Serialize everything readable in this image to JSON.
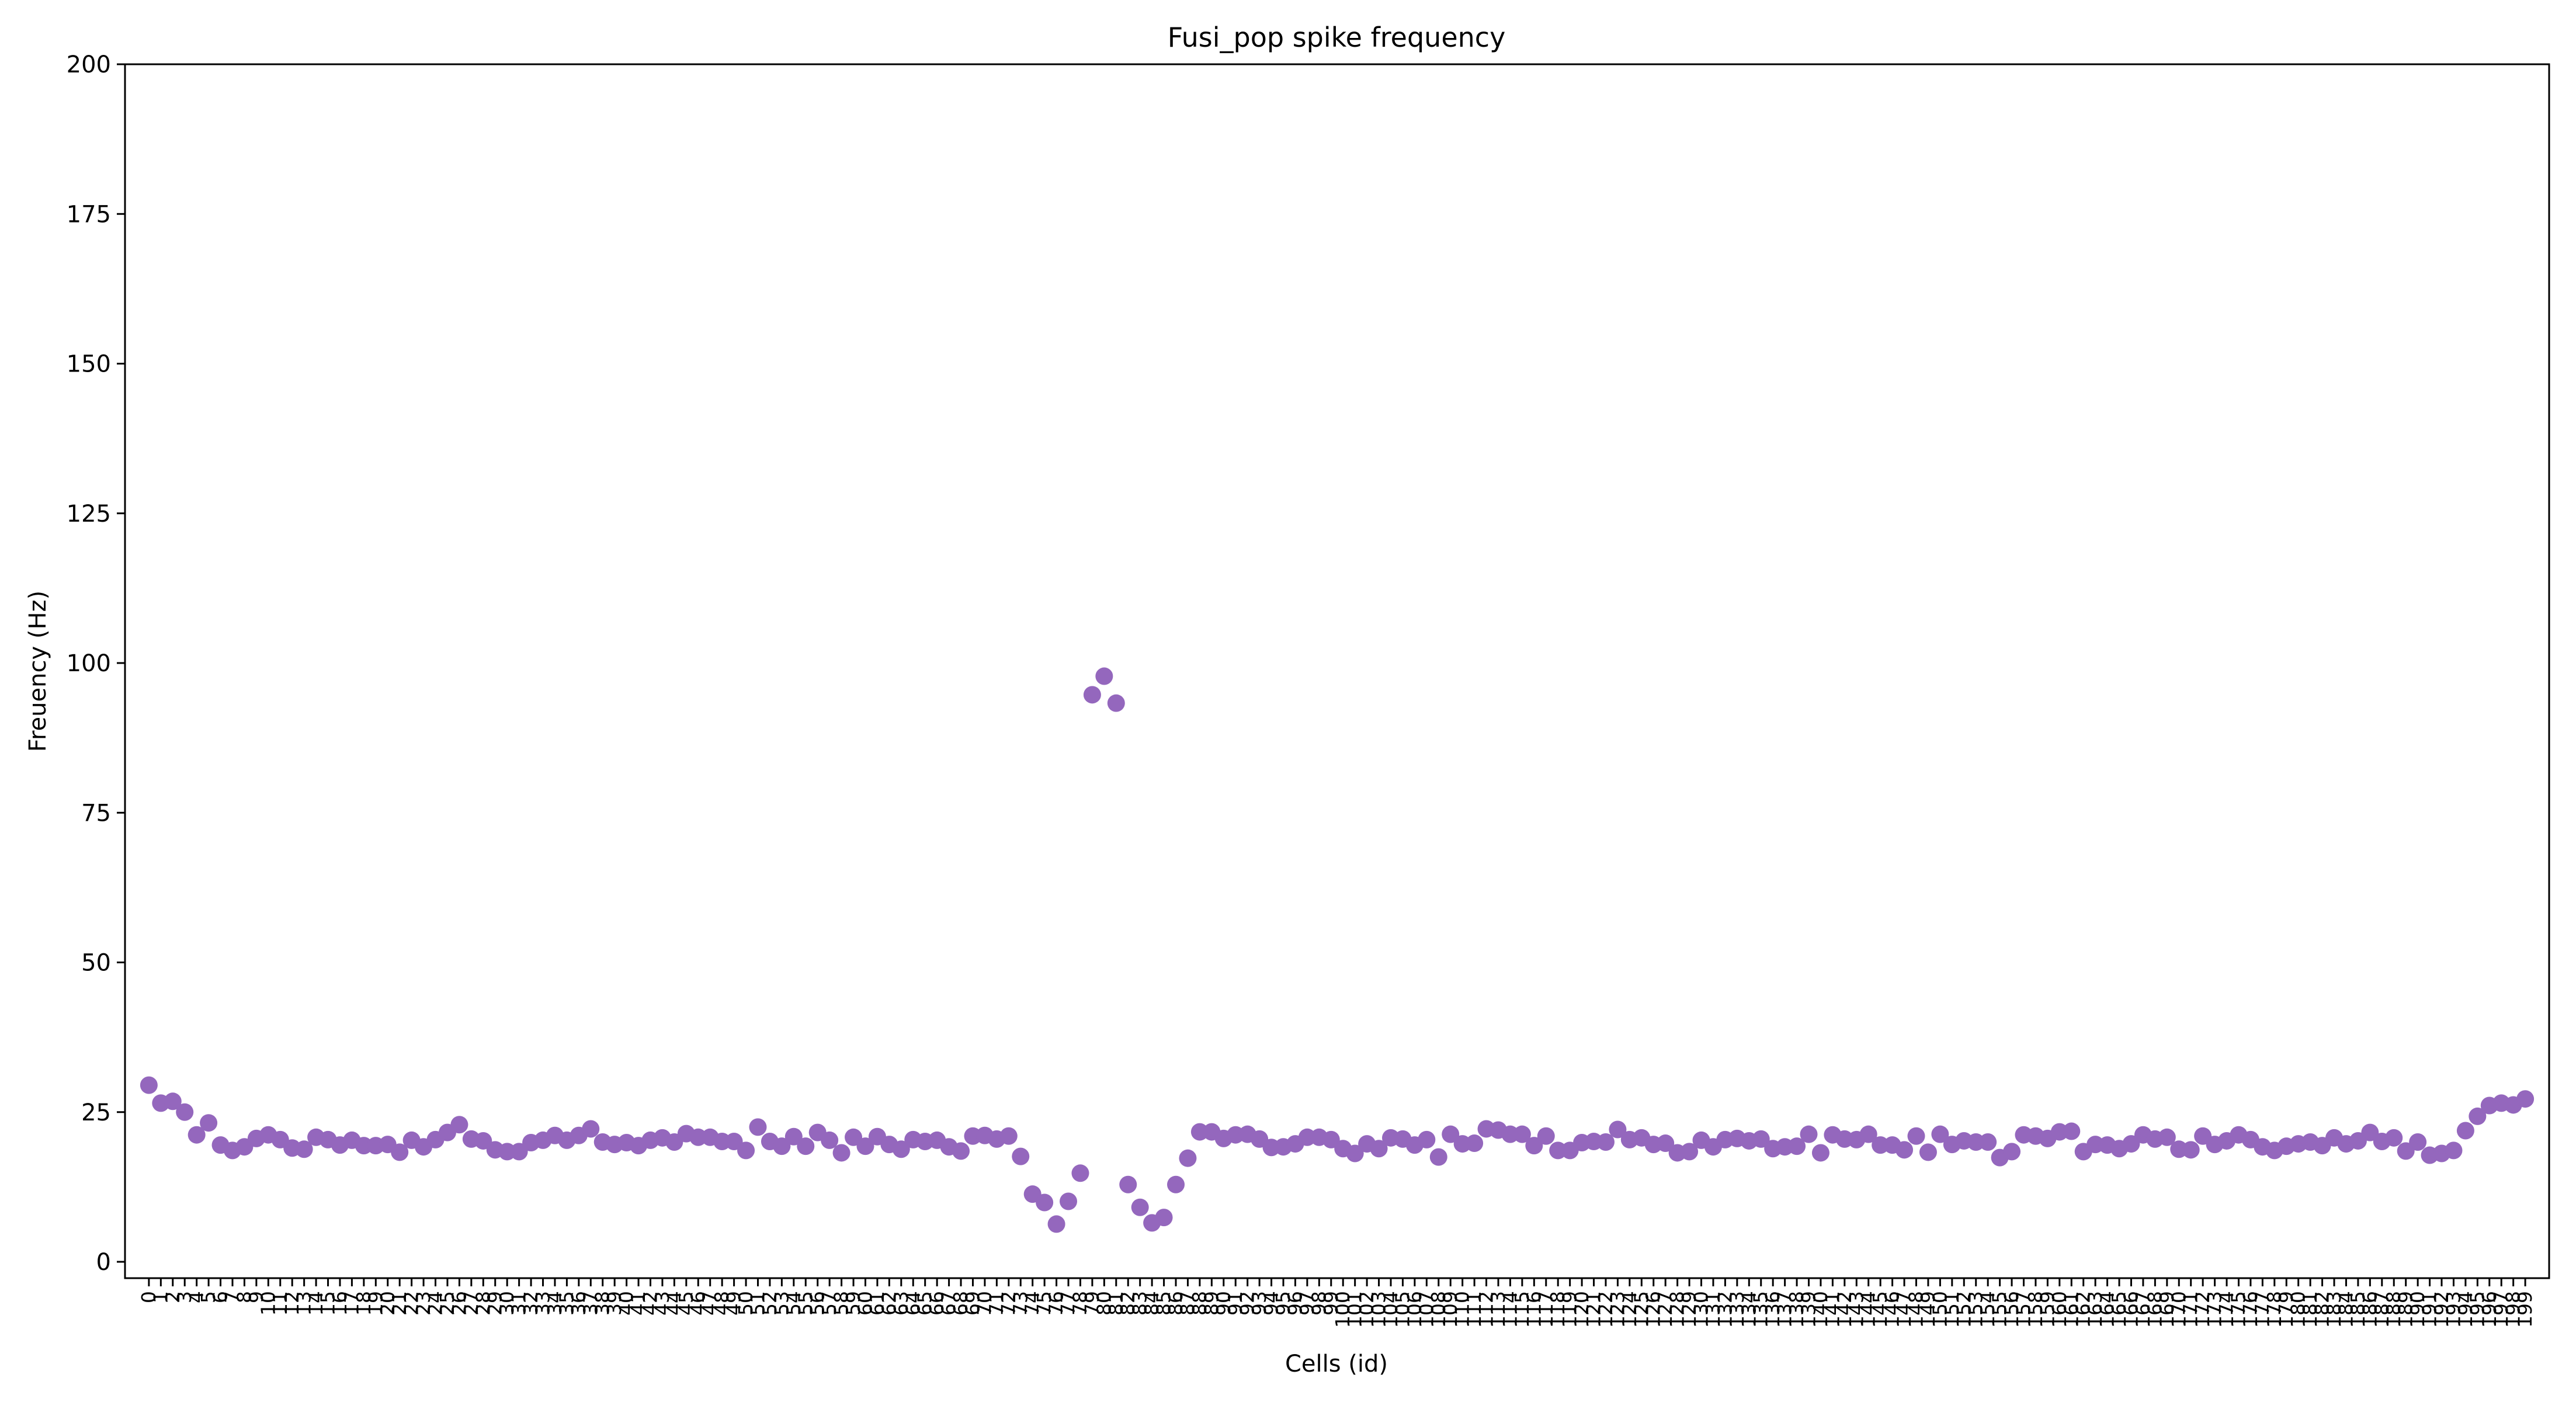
{
  "chart_data": {
    "type": "scatter",
    "title": "Fusi_pop spike frequency",
    "xlabel": "Cells (id)",
    "ylabel": "Freuency (Hz)",
    "ylim": [
      0,
      200
    ],
    "yticks": [
      0,
      25,
      50,
      75,
      100,
      125,
      150,
      175,
      200
    ],
    "xlim": [
      -2,
      201
    ],
    "grid": false,
    "legend": "none",
    "marker_color": "#9467bd",
    "x": [
      0,
      1,
      2,
      3,
      4,
      5,
      6,
      7,
      8,
      9,
      10,
      11,
      12,
      13,
      14,
      15,
      16,
      17,
      18,
      19,
      20,
      21,
      22,
      23,
      24,
      25,
      26,
      27,
      28,
      29,
      30,
      31,
      32,
      33,
      34,
      35,
      36,
      37,
      38,
      39,
      40,
      41,
      42,
      43,
      44,
      45,
      46,
      47,
      48,
      49,
      50,
      51,
      52,
      53,
      54,
      55,
      56,
      57,
      58,
      59,
      60,
      61,
      62,
      63,
      64,
      65,
      66,
      67,
      68,
      69,
      70,
      71,
      72,
      73,
      74,
      75,
      76,
      77,
      78,
      79,
      80,
      81,
      82,
      83,
      84,
      85,
      86,
      87,
      88,
      89,
      90,
      91,
      92,
      93,
      94,
      95,
      96,
      97,
      98,
      99,
      100,
      101,
      102,
      103,
      104,
      105,
      106,
      107,
      108,
      109,
      110,
      111,
      112,
      113,
      114,
      115,
      116,
      117,
      118,
      119,
      120,
      121,
      122,
      123,
      124,
      125,
      126,
      127,
      128,
      129,
      130,
      131,
      132,
      133,
      134,
      135,
      136,
      137,
      138,
      139,
      140,
      141,
      142,
      143,
      144,
      145,
      146,
      147,
      148,
      149,
      150,
      151,
      152,
      153,
      154,
      155,
      156,
      157,
      158,
      159,
      160,
      161,
      162,
      163,
      164,
      165,
      166,
      167,
      168,
      169,
      170,
      171,
      172,
      173,
      174,
      175,
      176,
      177,
      178,
      179,
      180,
      181,
      182,
      183,
      184,
      185,
      186,
      187,
      188,
      189,
      190,
      191,
      192,
      193,
      194,
      195,
      196,
      197,
      198,
      199
    ],
    "y": [
      29.5,
      26.5,
      26.8,
      25,
      21.2,
      23.2,
      19.5,
      18.6,
      19.2,
      20.6,
      21.2,
      20.4,
      19,
      18.8,
      20.8,
      20.4,
      19.5,
      20.3,
      19.4,
      19.4,
      19.6,
      18.3,
      20.3,
      19.2,
      20.4,
      21.6,
      22.9,
      20.5,
      20.2,
      18.7,
      18.4,
      18.4,
      19.9,
      20.3,
      21.1,
      20.3,
      21.1,
      22.2,
      20,
      19.6,
      19.9,
      19.4,
      20.3,
      20.7,
      20,
      21.4,
      20.8,
      20.8,
      20.1,
      20.1,
      18.6,
      22.5,
      20.1,
      19.3,
      20.9,
      19.3,
      21.6,
      20.3,
      18.2,
      20.8,
      19.3,
      20.9,
      19.6,
      18.8,
      20.4,
      20.1,
      20.3,
      19.2,
      18.5,
      21,
      21.1,
      20.5,
      21,
      17.6,
      11.3,
      9.9,
      6.3,
      10.1,
      14.8,
      94.7,
      97.8,
      93.3,
      12.9,
      9.1,
      6.5,
      7.4,
      12.9,
      17.3,
      21.7,
      21.7,
      20.6,
      21.2,
      21.3,
      20.5,
      19.1,
      19.2,
      19.7,
      20.8,
      20.8,
      20.4,
      18.9,
      18.1,
      19.7,
      18.9,
      20.7,
      20.5,
      19.5,
      20.4,
      17.5,
      21.3,
      19.7,
      19.8,
      22.2,
      22,
      21.3,
      21.3,
      19.4,
      21,
      18.6,
      18.6,
      19.9,
      20.1,
      20,
      22.1,
      20.4,
      20.7,
      19.6,
      19.8,
      18.2,
      18.4,
      20.3,
      19.2,
      20.4,
      20.6,
      20.2,
      20.5,
      18.9,
      19.2,
      19.3,
      21.3,
      18.2,
      21.2,
      20.5,
      20.4,
      21.3,
      19.5,
      19.5,
      18.7,
      21,
      18.3,
      21.3,
      19.6,
      20.2,
      20,
      20,
      17.4,
      18.4,
      21.2,
      21,
      20.6,
      21.7,
      21.8,
      18.4,
      19.6,
      19.5,
      18.9,
      19.7,
      21.2,
      20.5,
      20.8,
      18.8,
      18.7,
      21,
      19.6,
      20.2,
      21.2,
      20.4,
      19.2,
      18.6,
      19.3,
      19.7,
      20,
      19.4,
      20.7,
      19.7,
      20.2,
      21.6,
      20.1,
      20.7,
      18.5,
      20,
      17.8,
      18.1,
      18.6,
      21.9,
      24.3,
      26.1,
      26.5,
      26.2,
      27.2
    ]
  }
}
